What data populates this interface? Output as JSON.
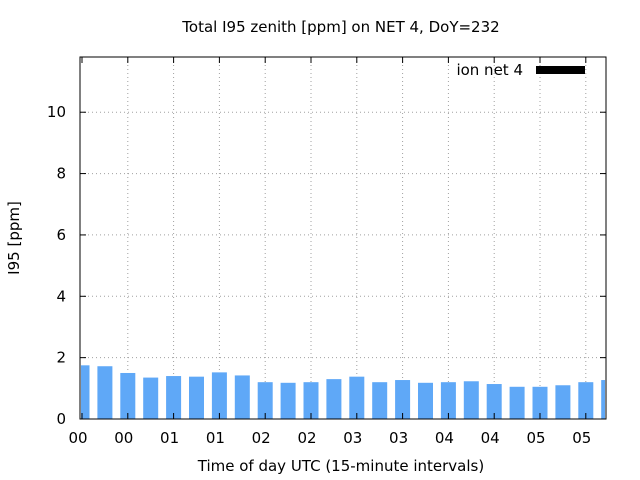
{
  "chart_data": {
    "type": "bar",
    "title": "Total I95 zenith [ppm] on NET 4, DoY=232",
    "xlabel": "Time of day UTC (15-minute intervals)",
    "ylabel": "I95 [ppm]",
    "ylim": [
      0,
      11.8
    ],
    "yticks": [
      0,
      2,
      4,
      6,
      8,
      10
    ],
    "xticks": [
      "00",
      "00",
      "01",
      "01",
      "02",
      "02",
      "03",
      "03",
      "04",
      "04",
      "05",
      "05"
    ],
    "grid": true,
    "legend_position": "top-right",
    "bar_color": "#5fa8f7",
    "legend_swatch_color": "#000000",
    "series": [
      {
        "name": "ion net 4",
        "values": [
          1.75,
          1.72,
          1.5,
          1.35,
          1.4,
          1.38,
          1.52,
          1.42,
          1.2,
          1.18,
          1.2,
          1.3,
          1.38,
          1.2,
          1.27,
          1.18,
          1.2,
          1.23,
          1.14,
          1.05,
          1.05,
          1.1,
          1.2,
          1.27
        ]
      }
    ]
  }
}
